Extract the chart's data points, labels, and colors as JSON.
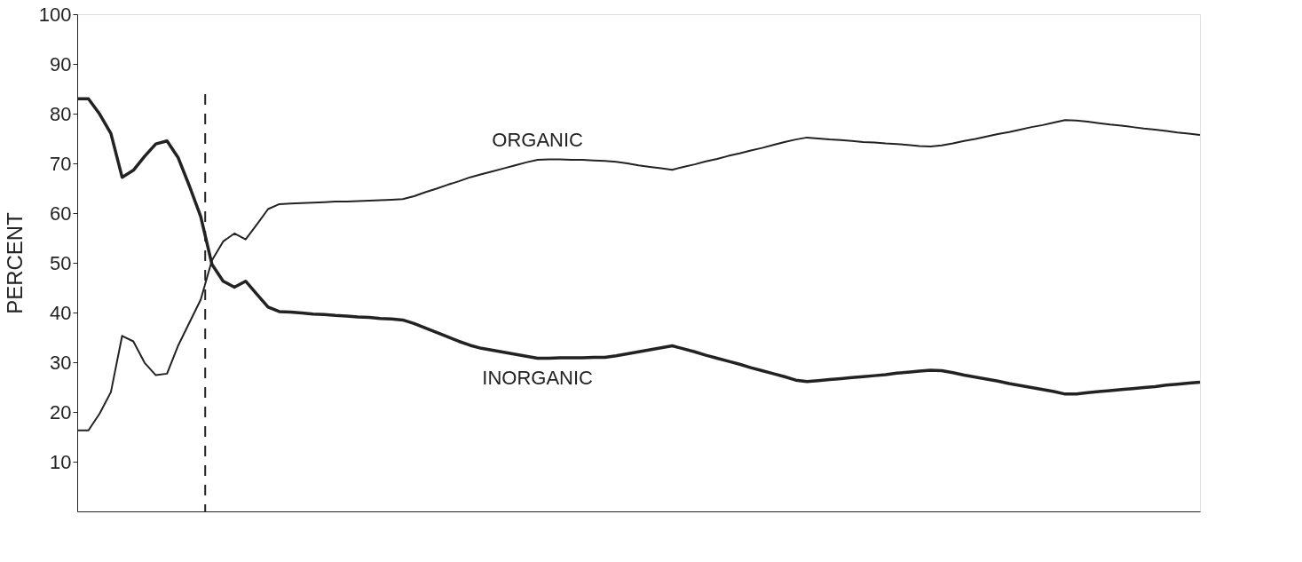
{
  "chart_data": {
    "type": "line",
    "ylabel": "PERCENT",
    "ylim": [
      0,
      100
    ],
    "yticks": [
      10,
      20,
      30,
      40,
      50,
      60,
      70,
      80,
      90,
      100
    ],
    "tick_labels": "y",
    "grid": false,
    "marker": "none",
    "categories": [
      null,
      null,
      null,
      null,
      null,
      null,
      null,
      null,
      null,
      null,
      null,
      null,
      null,
      null,
      null,
      null,
      null,
      null,
      null,
      null,
      null,
      null,
      null,
      null,
      null,
      null,
      null,
      null,
      null,
      null,
      null,
      null,
      null,
      null,
      null,
      null,
      null,
      null,
      null,
      null,
      null,
      null,
      null,
      null,
      null,
      null,
      null,
      null,
      null,
      null,
      null,
      null,
      null,
      null,
      null,
      null,
      null,
      null,
      null,
      null,
      null,
      null,
      null,
      null,
      null,
      null,
      null,
      null,
      null,
      null,
      null,
      null,
      null,
      null,
      null,
      null,
      null,
      null,
      null,
      null,
      null,
      null,
      null,
      null,
      null,
      null,
      null,
      null,
      null,
      null,
      null,
      null,
      null,
      null,
      null,
      null,
      null,
      null,
      null,
      null,
      null
    ],
    "series": [
      {
        "name": "ORGANIC",
        "color": "#222222",
        "line_style": "solid",
        "values": [
          16.3,
          16.3,
          19.7,
          24,
          35.3,
          34.2,
          29.9,
          27.4,
          27.7,
          33.4,
          38.0,
          42.6,
          50.5,
          54.3,
          55.9,
          54.7,
          57.7,
          60.8,
          61.8,
          61.9,
          62.0,
          62.1,
          62.2,
          62.3,
          62.3,
          62.4,
          62.5,
          62.6,
          62.7,
          62.8,
          63.4,
          64.2,
          64.9,
          65.7,
          66.4,
          67.2,
          67.8,
          68.4,
          69.0,
          69.6,
          70.2,
          70.7,
          70.8,
          70.8,
          70.7,
          70.7,
          70.6,
          70.5,
          70.3,
          70.0,
          69.6,
          69.3,
          69.0,
          68.7,
          69.3,
          69.8,
          70.4,
          70.9,
          71.5,
          72.0,
          72.6,
          73.1,
          73.7,
          74.3,
          74.8,
          75.2,
          75.0,
          74.8,
          74.7,
          74.5,
          74.3,
          74.2,
          74.0,
          73.9,
          73.7,
          73.5,
          73.4,
          73.6,
          74.0,
          74.5,
          74.9,
          75.4,
          75.9,
          76.3,
          76.8,
          77.3,
          77.7,
          78.2,
          78.7,
          78.6,
          78.4,
          78.1,
          77.8,
          77.6,
          77.3,
          77.0,
          76.8,
          76.5,
          76.2,
          76.0,
          75.7
        ]
      },
      {
        "name": "INORGANIC",
        "color": "#222222",
        "line_style": "solid",
        "values": [
          83,
          83,
          79.9,
          76,
          67.2,
          68.6,
          71.4,
          73.9,
          74.5,
          71.1,
          65.4,
          59.3,
          49.7,
          46.3,
          45.1,
          46.3,
          43.7,
          41.1,
          40.2,
          40.1,
          39.9,
          39.7,
          39.6,
          39.4,
          39.3,
          39.1,
          39.0,
          38.8,
          38.7,
          38.5,
          37.8,
          36.9,
          36.0,
          35.1,
          34.2,
          33.4,
          32.8,
          32.4,
          32.0,
          31.6,
          31.2,
          30.8,
          30.8,
          30.9,
          30.9,
          30.9,
          31.0,
          31.0,
          31.3,
          31.7,
          32.1,
          32.5,
          32.9,
          33.3,
          32.7,
          32.1,
          31.4,
          30.8,
          30.2,
          29.6,
          28.9,
          28.3,
          27.7,
          27.1,
          26.4,
          26.1,
          26.3,
          26.5,
          26.7,
          26.9,
          27.1,
          27.3,
          27.5,
          27.8,
          28.0,
          28.2,
          28.4,
          28.3,
          27.9,
          27.4,
          27.0,
          26.6,
          26.2,
          25.7,
          25.3,
          24.9,
          24.5,
          24.1,
          23.6,
          23.6,
          23.9,
          24.1,
          24.3,
          24.5,
          24.7,
          24.9,
          25.1,
          25.4,
          25.6,
          25.8,
          26
        ]
      }
    ],
    "ref_lines": [
      {
        "axis": "x",
        "line_style": "dashed",
        "color": "#222222"
      }
    ]
  }
}
